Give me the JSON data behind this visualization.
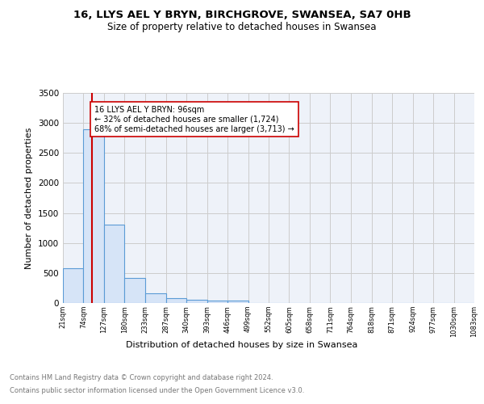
{
  "title": "16, LLYS AEL Y BRYN, BIRCHGROVE, SWANSEA, SA7 0HB",
  "subtitle": "Size of property relative to detached houses in Swansea",
  "xlabel": "Distribution of detached houses by size in Swansea",
  "ylabel": "Number of detached properties",
  "footer_line1": "Contains HM Land Registry data © Crown copyright and database right 2024.",
  "footer_line2": "Contains public sector information licensed under the Open Government Licence v3.0.",
  "bar_edges": [
    21,
    74,
    127,
    180,
    233,
    287,
    340,
    393,
    446,
    499,
    552,
    605,
    658,
    711,
    764,
    818,
    871,
    924,
    977,
    1030,
    1083
  ],
  "bar_heights": [
    575,
    2900,
    1300,
    415,
    155,
    80,
    50,
    45,
    40,
    0,
    0,
    0,
    0,
    0,
    0,
    0,
    0,
    0,
    0,
    0
  ],
  "bar_color": "#d6e4f7",
  "bar_edge_color": "#5b9bd5",
  "bar_edge_width": 0.8,
  "property_line_x": 96,
  "property_line_color": "#cc0000",
  "annotation_text": "16 LLYS AEL Y BRYN: 96sqm\n← 32% of detached houses are smaller (1,724)\n68% of semi-detached houses are larger (3,713) →",
  "annotation_box_color": "#ffffff",
  "annotation_box_edge_color": "#cc0000",
  "ylim": [
    0,
    3500
  ],
  "grid_color": "#cccccc",
  "bg_color": "#eef2f9",
  "tick_labels": [
    "21sqm",
    "74sqm",
    "127sqm",
    "180sqm",
    "233sqm",
    "287sqm",
    "340sqm",
    "393sqm",
    "446sqm",
    "499sqm",
    "552sqm",
    "605sqm",
    "658sqm",
    "711sqm",
    "764sqm",
    "818sqm",
    "871sqm",
    "924sqm",
    "977sqm",
    "1030sqm",
    "1083sqm"
  ]
}
